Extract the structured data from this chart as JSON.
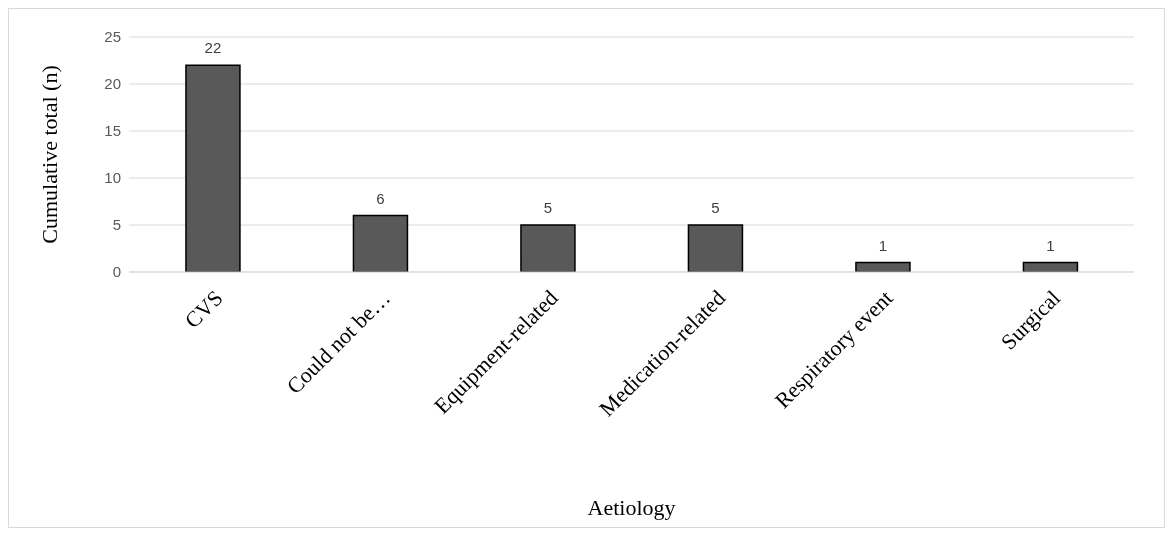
{
  "chart_data": {
    "type": "bar",
    "xlabel": "Aetiology",
    "ylabel": "Cumulative total (n)",
    "categories": [
      "CVS",
      "Could not be…",
      "Equipment-related",
      "Medication-related",
      "Respiratory event",
      "Surgical"
    ],
    "values": [
      22,
      6,
      5,
      5,
      1,
      1
    ],
    "color": "#595959",
    "ylim": [
      0,
      25
    ],
    "yticks": [
      0,
      5,
      10,
      15,
      20,
      25
    ],
    "grid": "y",
    "data_labels": true
  }
}
